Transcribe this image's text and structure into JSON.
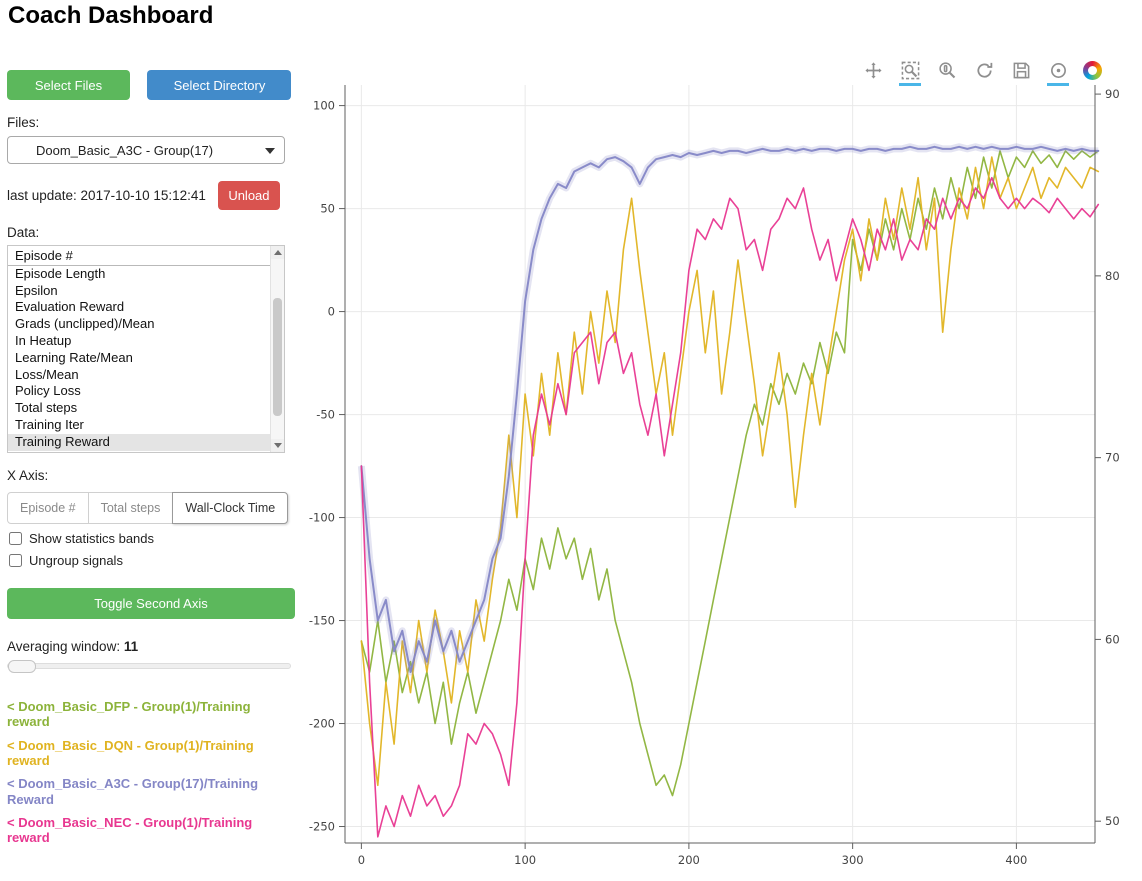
{
  "page": {
    "title": "Coach Dashboard"
  },
  "sidebar": {
    "select_files_label": "Select Files",
    "select_directory_label": "Select Directory",
    "files_label": "Files:",
    "files_selected": "Doom_Basic_A3C - Group(17)",
    "last_update": "last update: 2017-10-10 15:12:41",
    "unload_label": "Unload",
    "data_label": "Data:",
    "data_items": [
      "Episode #",
      "Episode Length",
      "Epsilon",
      "Evaluation Reward",
      "Grads (unclipped)/Mean",
      "In Heatup",
      "Learning Rate/Mean",
      "Loss/Mean",
      "Policy Loss",
      "Total steps",
      "Training Iter",
      "Training Reward"
    ],
    "data_selected": "Training Reward",
    "x_axis_label": "X Axis:",
    "x_axis_options": [
      "Episode #",
      "Total steps",
      "Wall-Clock Time"
    ],
    "x_axis_selected": "Wall-Clock Time",
    "checkboxes": [
      {
        "label": "Show statistics bands",
        "checked": false
      },
      {
        "label": "Ungroup signals",
        "checked": false
      }
    ],
    "toggle_second_axis_label": "Toggle Second Axis",
    "averaging_window_label": "Averaging window:",
    "averaging_window_value": "11",
    "legend": [
      {
        "label": "< Doom_Basic_DFP - Group(1)/Training reward",
        "color": "#8CB33A"
      },
      {
        "label": "< Doom_Basic_DQN - Group(1)/Training reward",
        "color": "#E0B320"
      },
      {
        "label": "< Doom_Basic_A3C - Group(17)/Training Reward",
        "color": "#8486C6"
      },
      {
        "label": "< Doom_Basic_NEC - Group(1)/Training reward",
        "color": "#E83790"
      }
    ]
  },
  "toolbar": {
    "tools": [
      {
        "name": "pan",
        "active": false
      },
      {
        "name": "box-zoom",
        "active": true
      },
      {
        "name": "wheel-zoom",
        "active": false
      },
      {
        "name": "reset",
        "active": false
      },
      {
        "name": "save",
        "active": false
      },
      {
        "name": "hover",
        "active": true
      },
      {
        "name": "bokeh-logo",
        "active": false
      }
    ]
  },
  "chart_data": {
    "type": "line",
    "title": "",
    "xlabel": "",
    "ylabel": "",
    "x_start": 0,
    "x_step": 5,
    "xlim": [
      -10,
      448
    ],
    "ylim_left": [
      -258,
      110
    ],
    "ylim_right": [
      48.8,
      90.5
    ],
    "x_ticks": [
      0,
      100,
      200,
      300,
      400
    ],
    "y_ticks_left": [
      100,
      50,
      0,
      -50,
      -100,
      -150,
      -200,
      -250
    ],
    "y_ticks_right": [
      90,
      80,
      70,
      60,
      50
    ],
    "grid": true,
    "legend_position": "left-sidebar",
    "series": [
      {
        "name": "Doom_Basic_DFP - Group(1)/Training reward",
        "color": "#8CB33A",
        "axis": "left",
        "band": false,
        "values": [
          -160,
          -175,
          -150,
          -180,
          -160,
          -185,
          -170,
          -190,
          -175,
          -200,
          -180,
          -210,
          -190,
          -175,
          -195,
          -180,
          -165,
          -150,
          -130,
          -145,
          -120,
          -135,
          -110,
          -125,
          -105,
          -120,
          -110,
          -130,
          -115,
          -140,
          -125,
          -150,
          -165,
          -180,
          -200,
          -215,
          -230,
          -225,
          -235,
          -220,
          -200,
          -180,
          -160,
          -140,
          -120,
          -100,
          -80,
          -60,
          -45,
          -55,
          -35,
          -45,
          -30,
          -40,
          -25,
          -35,
          -15,
          -30,
          -10,
          -20,
          35,
          20,
          40,
          25,
          45,
          30,
          50,
          35,
          55,
          40,
          60,
          45,
          65,
          50,
          70,
          55,
          75,
          60,
          78,
          65,
          75,
          70,
          78,
          72,
          76,
          70,
          78,
          74,
          78,
          75,
          78
        ]
      },
      {
        "name": "Doom_Basic_DQN - Group(1)/Training reward",
        "color": "#E0B320",
        "axis": "left",
        "band": false,
        "values": [
          -160,
          -200,
          -230,
          -180,
          -210,
          -160,
          -185,
          -150,
          -175,
          -145,
          -165,
          -190,
          -155,
          -175,
          -140,
          -160,
          -130,
          -105,
          -60,
          -100,
          -40,
          -70,
          -30,
          -60,
          -20,
          -50,
          -10,
          -40,
          0,
          -25,
          10,
          -15,
          30,
          55,
          20,
          -10,
          -40,
          -20,
          -60,
          -30,
          0,
          20,
          -20,
          10,
          -40,
          -10,
          25,
          -5,
          -35,
          -70,
          -45,
          -20,
          -50,
          -95,
          -60,
          -30,
          -55,
          -25,
          0,
          25,
          40,
          15,
          45,
          25,
          55,
          35,
          60,
          40,
          65,
          30,
          55,
          -10,
          30,
          60,
          45,
          70,
          50,
          75,
          55,
          65,
          50,
          60,
          70,
          55,
          65,
          60,
          70,
          65,
          60,
          70,
          68
        ]
      },
      {
        "name": "Doom_Basic_A3C - Group(17)/Training Reward",
        "color": "#8486C6",
        "axis": "left",
        "band": true,
        "values": [
          -75,
          -120,
          -150,
          -140,
          -165,
          -155,
          -175,
          -160,
          -170,
          -150,
          -165,
          -155,
          -170,
          -160,
          -150,
          -140,
          -120,
          -110,
          -80,
          -40,
          5,
          30,
          45,
          55,
          62,
          60,
          68,
          70,
          72,
          70,
          74,
          75,
          73,
          70,
          62,
          70,
          74,
          75,
          76,
          75,
          77,
          76,
          77,
          78,
          77,
          78,
          78,
          77,
          78,
          79,
          78,
          78,
          79,
          78,
          79,
          78,
          79,
          79,
          78,
          79,
          79,
          78,
          79,
          79,
          78,
          79,
          79,
          80,
          79,
          79,
          80,
          79,
          79,
          80,
          79,
          80,
          79,
          80,
          79,
          79,
          80,
          79,
          79,
          80,
          79,
          78,
          79,
          78,
          79,
          78,
          78
        ]
      },
      {
        "name": "Doom_Basic_NEC - Group(1)/Training reward",
        "color": "#E83790",
        "axis": "left",
        "band": false,
        "values": [
          -75,
          -180,
          -255,
          -240,
          -250,
          -235,
          -245,
          -230,
          -240,
          -235,
          -245,
          -240,
          -230,
          -205,
          -210,
          -200,
          -205,
          -215,
          -230,
          -190,
          -120,
          -60,
          -40,
          -55,
          -35,
          -50,
          -20,
          -15,
          -10,
          -35,
          -15,
          -10,
          -30,
          -20,
          -45,
          -60,
          -40,
          -70,
          -45,
          -20,
          20,
          40,
          35,
          45,
          40,
          55,
          50,
          30,
          35,
          20,
          40,
          45,
          55,
          50,
          60,
          40,
          25,
          35,
          15,
          30,
          45,
          35,
          20,
          40,
          30,
          45,
          25,
          35,
          30,
          45,
          40,
          55,
          45,
          55,
          50,
          60,
          55,
          65,
          55,
          50,
          55,
          50,
          55,
          52,
          48,
          55,
          50,
          45,
          50,
          46,
          52
        ]
      }
    ]
  }
}
